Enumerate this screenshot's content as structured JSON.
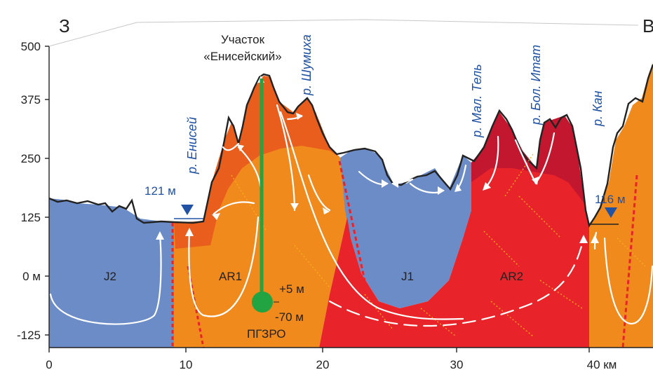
{
  "directions": {
    "west": "З",
    "east": "В"
  },
  "y_axis": {
    "ticks": [
      "500",
      "375",
      "250",
      "125",
      "0 м",
      "-125"
    ]
  },
  "x_axis": {
    "ticks": [
      "0",
      "10",
      "20",
      "30",
      "40 км"
    ]
  },
  "site": {
    "line1": "Участок",
    "line2": "«Енисейский»"
  },
  "rivers": {
    "yenisei": "р. Енисей",
    "shumikha": "р. Шумиха",
    "mal_tel": "р. Мал. Тель",
    "bol_itat": "р. Бол. Итат",
    "kan": "р. Кан"
  },
  "water_levels": {
    "left": "121 м",
    "right": "116 м"
  },
  "units": {
    "j2": "J2",
    "ar1": "AR1",
    "j1": "J1",
    "ar2": "AR2"
  },
  "borehole": {
    "top_label": "+5 м",
    "bottom_label": "-70 м",
    "name": "ПГЗРО"
  },
  "colors": {
    "jurassic": "#6b8cc7",
    "archean_1": "#f08a1c",
    "archean_1_dark": "#e8561c",
    "archean_2": "#e8242a",
    "archean_2_dark": "#c3172f",
    "borehole": "#22a443",
    "river_labels": "#2152a3",
    "fault": "#e8242a"
  }
}
